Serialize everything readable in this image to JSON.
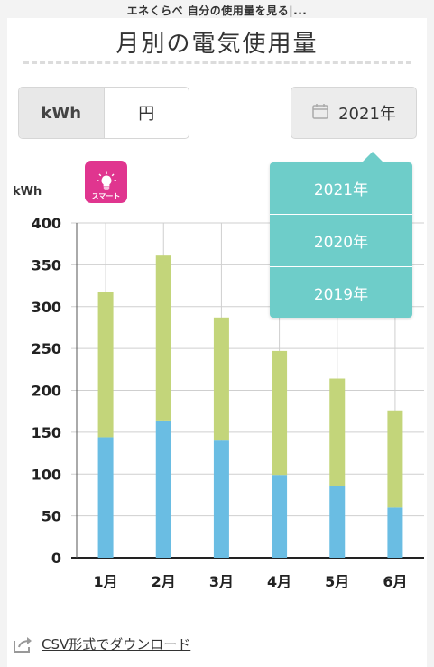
{
  "app": {
    "title": "エネくらべ 自分の使用量を見る|..."
  },
  "page": {
    "title": "月別の電気使用量"
  },
  "unit_toggle": {
    "kwh_label": "kWh",
    "yen_label": "円",
    "selected": "kWh"
  },
  "year_selector": {
    "label": "2021年",
    "icon": "calendar-icon"
  },
  "year_dropdown": {
    "items": [
      "2021年",
      "2020年",
      "2019年"
    ]
  },
  "badge": {
    "label": "スマート",
    "icon": "lightbulb-icon",
    "color": "#e0358f"
  },
  "chart_data": {
    "type": "bar",
    "stacked": true,
    "categories": [
      "1月",
      "2月",
      "3月",
      "4月",
      "5月",
      "6月"
    ],
    "series": [
      {
        "color": "#6abde3",
        "values": [
          144,
          164,
          140,
          99,
          86,
          60
        ]
      },
      {
        "color": "#c3d57a",
        "values": [
          173,
          197,
          147,
          148,
          128,
          116
        ]
      }
    ],
    "ylabel": "kWh",
    "ylim": [
      0,
      400
    ],
    "yticks": [
      0,
      50,
      100,
      150,
      200,
      250,
      300,
      350,
      400
    ],
    "grid": true
  },
  "download": {
    "label": "CSV形式でダウンロード",
    "icon": "export-icon"
  }
}
